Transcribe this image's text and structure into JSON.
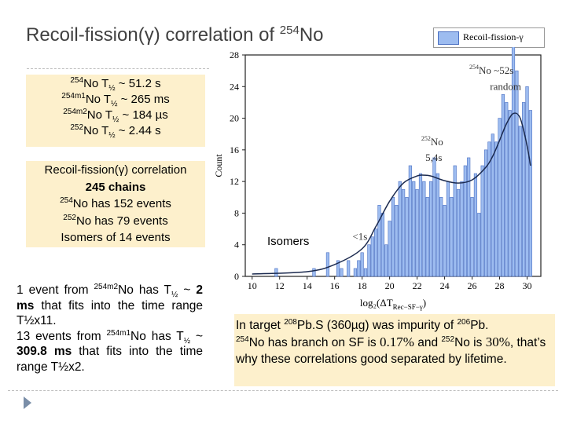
{
  "slide": {
    "title_main": "Recoil-fission(γ) correlation of ",
    "title_sup": "254",
    "title_end": "No"
  },
  "halflives": [
    {
      "sup": "254",
      "text": "No T",
      "sub": "½",
      "rest": " ~ 51.2 s"
    },
    {
      "sup": "254m1",
      "text": "No T",
      "sub": "½",
      "rest": " ~ 265 ms"
    },
    {
      "sup": "254m2",
      "text": "No T",
      "sub": "½",
      "rest": " ~ 184 µs"
    },
    {
      "sup": "252",
      "text": "No T",
      "sub": "½",
      "rest": " ~ 2.44 s"
    }
  ],
  "correlation": {
    "line1": "Recoil-fission(γ) correlation",
    "line2": "245 chains",
    "line3_sup": "254",
    "line3": "No has 152 events",
    "line4_sup": "252",
    "line4": "No has 79 events",
    "line5": "Isomers of 14 events"
  },
  "para": {
    "p1a": "1 event from ",
    "p1sup": "254m2",
    "p1b": "No has T",
    "p1sub": "½",
    "p1c": " ~ ",
    "p1bold": "2 ms",
    "p1d": " that fits into the time range T½x11.",
    "p2a": "13 events from ",
    "p2sup": "254m1",
    "p2b": "No has T",
    "p2sub": "½",
    "p2c": " ~ ",
    "p2bold": "309.8 ms",
    "p2d": " that fits into the time range T½x2."
  },
  "bottom": {
    "a": "In target ",
    "sup1": "208",
    "b": "Pb.S (360µg) was impurity of ",
    "sup2": "206",
    "c": "Pb.",
    "sup3": "254",
    "d": "No has branch on SF is ",
    "pct1": "0.17%",
    "e": " and ",
    "sup4": "252",
    "f": "No is ",
    "pct2": "30%",
    "g": ", that’s why these correlations good separated by lifetime."
  },
  "legend_label": "Recoil-fission-γ",
  "isomers_label": "Isomers",
  "chart_data": {
    "type": "bar",
    "xlabel": "log₂(ΔT",
    "xlabel_sub": "Rec−SF−γ",
    "xlabel_end": ")",
    "ylabel": "Count",
    "xlim": [
      9.5,
      31
    ],
    "ylim": [
      0,
      28
    ],
    "xticks": [
      10,
      12,
      14,
      16,
      18,
      20,
      22,
      24,
      26,
      28,
      30
    ],
    "yticks": [
      0,
      4,
      8,
      12,
      16,
      20,
      24,
      28
    ],
    "annotations": {
      "no254_sup": "254",
      "no254": "No  ~52s",
      "random": "random",
      "no252_sup": "252",
      "no252": "No",
      "no252_t": "5,4s",
      "lt1s": "<1s"
    },
    "series": [
      {
        "name": "Recoil-fission-γ",
        "x": [
          11.75,
          14.5,
          15.5,
          16.25,
          16.5,
          17.0,
          17.5,
          17.75,
          18.0,
          18.25,
          18.5,
          18.75,
          19.0,
          19.25,
          19.5,
          19.75,
          20.0,
          20.25,
          20.5,
          20.75,
          21.0,
          21.25,
          21.5,
          21.75,
          22.0,
          22.25,
          22.5,
          22.75,
          23.0,
          23.25,
          23.5,
          23.75,
          24.0,
          24.25,
          24.5,
          24.75,
          25.0,
          25.25,
          25.5,
          25.75,
          26.0,
          26.25,
          26.5,
          26.75,
          27.0,
          27.25,
          27.5,
          27.75,
          28.0,
          28.25,
          28.5,
          28.75,
          29.0,
          29.25,
          29.5,
          29.75,
          30.0,
          30.25
        ],
        "values": [
          1,
          1,
          3,
          2,
          1,
          2,
          1,
          2,
          3,
          1,
          4,
          5,
          6,
          9,
          8,
          4,
          7,
          10,
          9,
          12,
          11,
          10,
          14,
          12,
          11,
          13,
          12,
          10,
          12,
          15,
          13,
          10,
          9,
          12,
          10,
          14,
          11,
          12,
          14,
          15,
          10,
          13,
          8,
          14,
          16,
          17,
          18,
          17,
          20,
          23,
          22,
          21,
          30,
          26,
          19,
          22,
          24,
          21
        ]
      }
    ],
    "fit_curve": {
      "x": [
        10.0,
        14.0,
        16.0,
        18.0,
        19.0,
        20.0,
        21.0,
        22.0,
        22.5,
        23.0,
        24.0,
        25.0,
        26.0,
        27.0,
        27.5,
        28.0,
        28.5,
        29.0,
        29.5,
        30.0,
        30.25
      ],
      "values": [
        0.3,
        0.6,
        1.5,
        3.5,
        6.3,
        9.5,
        11.8,
        12.7,
        12.8,
        12.7,
        12.1,
        11.8,
        12.2,
        13.8,
        15.2,
        17.2,
        19.3,
        20.6,
        20.0,
        16.5,
        14.0
      ]
    }
  }
}
